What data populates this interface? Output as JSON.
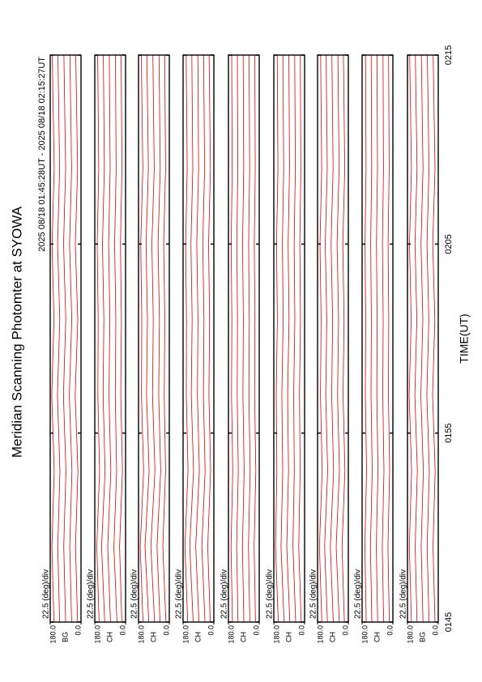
{
  "chart_data": {
    "type": "line",
    "title": "Meridian Scanning Photomter at SYOWA",
    "subtitle": "2025 08/18 01:45:28UT - 2025 08/18 02:15:27UT",
    "xlabel": "TIME(UT)",
    "color": "#e00000",
    "xlim": [
      105,
      135
    ],
    "xticks": [
      {
        "value": 105,
        "label": "0145"
      },
      {
        "value": 115,
        "label": "0155"
      },
      {
        "value": 125,
        "label": "0205"
      },
      {
        "value": 135,
        "label": "0215"
      }
    ],
    "x": [
      105,
      109,
      113,
      117,
      121,
      125,
      129,
      135
    ],
    "panels": [
      {
        "channel": "BG",
        "scale_label": "22.5 (deg)/div",
        "ylim": [
          0,
          180
        ],
        "yticks": [
          {
            "value": 0,
            "label": "0.0"
          },
          {
            "value": 180,
            "label": "180.0"
          }
        ],
        "series": [
          {
            "values": [
              20,
              32,
              18,
              34,
              19,
              33,
              20,
              31
            ]
          },
          {
            "values": [
              55,
              66,
              53,
              68,
              54,
              67,
              55,
              65
            ]
          },
          {
            "values": [
              90,
              101,
              88,
              103,
              89,
              102,
              90,
              100
            ]
          },
          {
            "values": [
              125,
              136,
              123,
              138,
              124,
              137,
              125,
              135
            ]
          },
          {
            "values": [
              158,
              170,
              157,
              171,
              158,
              169,
              157,
              168
            ]
          }
        ]
      },
      {
        "channel": "CH",
        "scale_label": "22.5 (deg)/div",
        "ylim": [
          0,
          180
        ],
        "yticks": [
          {
            "value": 0,
            "label": "0.0"
          },
          {
            "value": 180,
            "label": "180.0"
          }
        ],
        "series": [
          {
            "values": [
              22,
              35,
              18,
              28,
              24,
              30,
              21,
              26
            ]
          },
          {
            "values": [
              50,
              68,
              52,
              60,
              57,
              64,
              55,
              59
            ]
          },
          {
            "values": [
              88,
              104,
              86,
              97,
              92,
              99,
              90,
              95
            ]
          },
          {
            "values": [
              122,
              140,
              120,
              131,
              127,
              135,
              124,
              130
            ]
          },
          {
            "values": [
              155,
              168,
              152,
              162,
              160,
              166,
              157,
              163
            ]
          }
        ]
      },
      {
        "channel": "CH",
        "scale_label": "22.5 (deg)/div",
        "ylim": [
          0,
          180
        ],
        "yticks": [
          {
            "value": 0,
            "label": "0.0"
          },
          {
            "value": 180,
            "label": "180.0"
          }
        ],
        "series": [
          {
            "values": [
              20,
              38,
              22,
              30,
              26,
              33,
              22,
              27
            ]
          },
          {
            "values": [
              54,
              72,
              50,
              62,
              58,
              66,
              53,
              60
            ]
          },
          {
            "values": [
              86,
              108,
              84,
              98,
              94,
              102,
              88,
              96
            ]
          },
          {
            "values": [
              120,
              142,
              118,
              133,
              128,
              136,
              122,
              131
            ]
          },
          {
            "values": [
              154,
              170,
              150,
              163,
              161,
              167,
              155,
              164
            ]
          }
        ]
      },
      {
        "channel": "CH",
        "scale_label": "22.5 (deg)/div",
        "ylim": [
          0,
          180
        ],
        "yticks": [
          {
            "value": 0,
            "label": "0.0"
          },
          {
            "value": 180,
            "label": "180.0"
          }
        ],
        "series": [
          {
            "values": [
              21,
              36,
              19,
              29,
              25,
              31,
              20,
              28
            ]
          },
          {
            "values": [
              52,
              70,
              51,
              61,
              58,
              65,
              54,
              60
            ]
          },
          {
            "values": [
              87,
              106,
              85,
              96,
              93,
              100,
              89,
              94
            ]
          },
          {
            "values": [
              121,
              141,
              119,
              132,
              127,
              134,
              123,
              129
            ]
          },
          {
            "values": [
              153,
              169,
              151,
              161,
              160,
              165,
              156,
              162
            ]
          }
        ]
      },
      {
        "channel": "CH",
        "scale_label": "22.5 (deg)/div",
        "ylim": [
          0,
          180
        ],
        "yticks": [
          {
            "value": 0,
            "label": "0.0"
          },
          {
            "value": 180,
            "label": "180.0"
          }
        ],
        "series": [
          {
            "values": [
              22,
              30,
              20,
              27,
              25,
              29,
              23,
              26
            ]
          },
          {
            "values": [
              55,
              63,
              53,
              60,
              58,
              62,
              56,
              59
            ]
          },
          {
            "values": [
              90,
              98,
              88,
              95,
              93,
              97,
              91,
              94
            ]
          },
          {
            "values": [
              124,
              132,
              122,
              129,
              127,
              131,
              125,
              128
            ]
          },
          {
            "values": [
              157,
              165,
              155,
              162,
              160,
              164,
              158,
              161
            ]
          }
        ]
      },
      {
        "channel": "CH",
        "scale_label": "22.5 (deg)/div",
        "ylim": [
          0,
          180
        ],
        "yticks": [
          {
            "value": 0,
            "label": "0.0"
          },
          {
            "value": 180,
            "label": "180.0"
          }
        ],
        "series": [
          {
            "values": [
              20,
              34,
              26,
              30,
              24,
              28,
              22,
              25
            ]
          },
          {
            "values": [
              52,
              68,
              60,
              64,
              57,
              61,
              54,
              58
            ]
          },
          {
            "values": [
              86,
              104,
              94,
              99,
              91,
              96,
              88,
              92
            ]
          },
          {
            "values": [
              120,
              138,
              128,
              133,
              125,
              130,
              122,
              127
            ]
          },
          {
            "values": [
              154,
              170,
              162,
              166,
              159,
              164,
              156,
              160
            ]
          }
        ]
      },
      {
        "channel": "CH",
        "scale_label": "22.5 (deg)/div",
        "ylim": [
          0,
          180
        ],
        "yticks": [
          {
            "value": 0,
            "label": "0.0"
          },
          {
            "value": 180,
            "label": "180.0"
          }
        ],
        "series": [
          {
            "values": [
              23,
              37,
              20,
              31,
              25,
              32,
              21,
              29
            ]
          },
          {
            "values": [
              53,
              71,
              52,
              63,
              57,
              66,
              54,
              61
            ]
          },
          {
            "values": [
              88,
              105,
              86,
              97,
              92,
              101,
              89,
              96
            ]
          },
          {
            "values": [
              122,
              139,
              121,
              132,
              126,
              135,
              123,
              130
            ]
          },
          {
            "values": [
              155,
              169,
              153,
              163,
              159,
              166,
              156,
              162
            ]
          }
        ]
      },
      {
        "channel": "CH",
        "scale_label": "22.5 (deg)/div",
        "ylim": [
          0,
          180
        ],
        "yticks": [
          {
            "value": 0,
            "label": "0.0"
          },
          {
            "value": 180,
            "label": "180.0"
          }
        ],
        "series": [
          {
            "values": [
              21,
              29,
              19,
              26,
              24,
              28,
              22,
              25
            ]
          },
          {
            "values": [
              54,
              62,
              52,
              59,
              57,
              61,
              55,
              58
            ]
          },
          {
            "values": [
              89,
              97,
              87,
              94,
              92,
              96,
              90,
              93
            ]
          },
          {
            "values": [
              123,
              131,
              121,
              128,
              126,
              130,
              124,
              127
            ]
          },
          {
            "values": [
              156,
              164,
              154,
              161,
              159,
              163,
              157,
              160
            ]
          }
        ]
      },
      {
        "channel": "BG",
        "scale_label": "22.5 (deg)/div",
        "ylim": [
          0,
          180
        ],
        "yticks": [
          {
            "value": 0,
            "label": "0.0"
          },
          {
            "value": 180,
            "label": "180.0"
          }
        ],
        "series": [
          {
            "values": [
              19,
              31,
              18,
              33,
              20,
              32,
              19,
              30
            ]
          },
          {
            "values": [
              54,
              65,
              52,
              67,
              55,
              66,
              54,
              64
            ]
          },
          {
            "values": [
              89,
              100,
              87,
              102,
              90,
              101,
              89,
              99
            ]
          },
          {
            "values": [
              124,
              135,
              122,
              137,
              125,
              136,
              124,
              134
            ]
          },
          {
            "values": [
              157,
              169,
              156,
              170,
              158,
              168,
              157,
              167
            ]
          }
        ]
      }
    ]
  }
}
